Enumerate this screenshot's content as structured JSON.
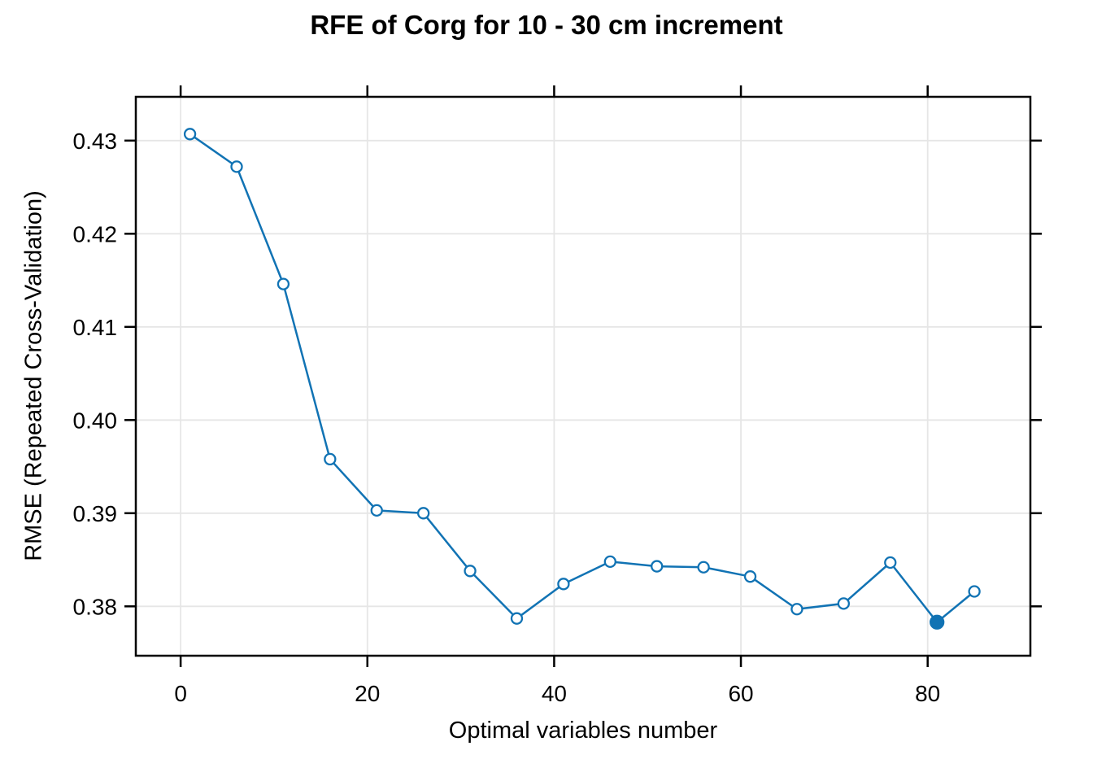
{
  "chart_data": {
    "type": "line",
    "title": "RFE of Corg for 10 - 30 cm increment",
    "xlabel": "Optimal variables number",
    "ylabel": "RMSE (Repeated Cross-Validation)",
    "x": [
      1,
      6,
      11,
      16,
      21,
      26,
      31,
      36,
      41,
      46,
      51,
      56,
      61,
      66,
      71,
      76,
      81,
      85
    ],
    "y": [
      0.4307,
      0.4272,
      0.4146,
      0.3958,
      0.3903,
      0.39,
      0.3838,
      0.3787,
      0.3824,
      0.3848,
      0.3843,
      0.3842,
      0.3832,
      0.3797,
      0.3803,
      0.3847,
      0.3783,
      0.3816
    ],
    "best_point": {
      "x": 81,
      "y": 0.3783
    },
    "xticks": [
      0,
      20,
      40,
      60,
      80
    ],
    "xtick_labels": [
      "0",
      "20",
      "40",
      "60",
      "80"
    ],
    "yticks": [
      0.38,
      0.39,
      0.4,
      0.41,
      0.42,
      0.43
    ],
    "ytick_labels": [
      "0.38",
      "0.39",
      "0.40",
      "0.41",
      "0.42",
      "0.43"
    ],
    "xlim": [
      -4.8,
      91.0
    ],
    "ylim": [
      0.3747,
      0.4347
    ],
    "grid": true,
    "legend_position": "none",
    "marker": {
      "shape": "open-circle",
      "best_shape": "filled-circle"
    },
    "colors": {
      "series": "#1173B4",
      "grid": "#E6E6E6",
      "axis": "#000000",
      "text": "#000000",
      "background": "#FFFFFF"
    }
  }
}
